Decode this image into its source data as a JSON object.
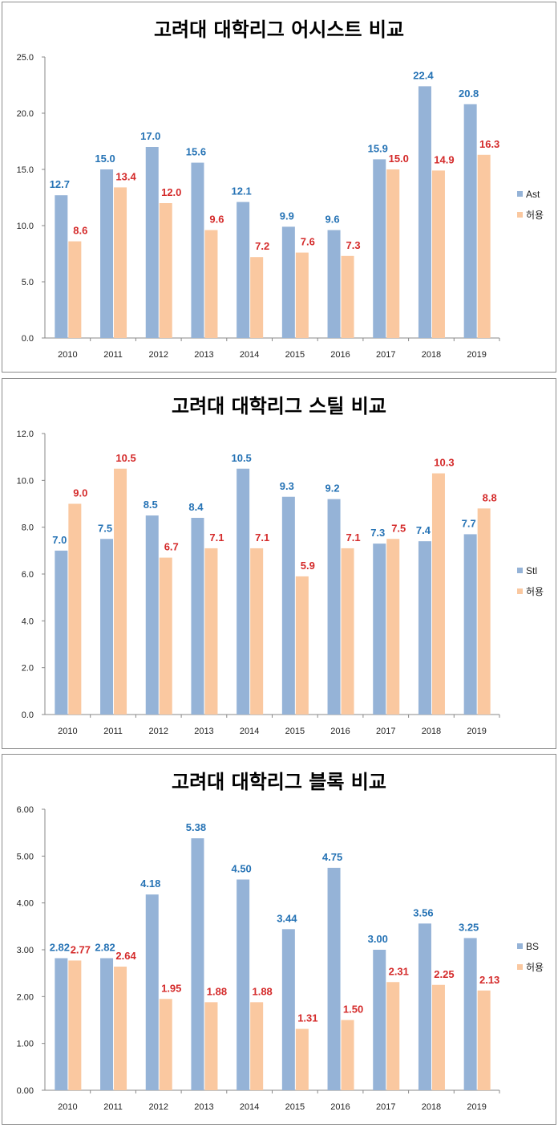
{
  "colors": {
    "primary_bar": "#95B3D7",
    "opponent_bar": "#FAC8A0",
    "primary_label": "#2673B5",
    "opponent_label": "#D42A2A"
  },
  "chart_data": [
    {
      "type": "bar",
      "title": "고려대 대학리그 어시스트 비교",
      "categories": [
        "2010",
        "2011",
        "2012",
        "2013",
        "2014",
        "2015",
        "2016",
        "2017",
        "2018",
        "2019"
      ],
      "ylim": [
        0,
        25
      ],
      "yticks": [
        "0.0",
        "5.0",
        "10.0",
        "15.0",
        "20.0",
        "25.0"
      ],
      "decimals": 1,
      "legend_position": "right",
      "series": [
        {
          "name": "Ast",
          "values": [
            12.7,
            15.0,
            17.0,
            15.6,
            12.1,
            9.9,
            9.6,
            15.9,
            22.4,
            20.8
          ]
        },
        {
          "name": "허용",
          "values": [
            8.6,
            13.4,
            12.0,
            9.6,
            7.2,
            7.6,
            7.3,
            15.0,
            14.9,
            16.3
          ]
        }
      ]
    },
    {
      "type": "bar",
      "title": "고려대 대학리그 스틸 비교",
      "categories": [
        "2010",
        "2011",
        "2012",
        "2013",
        "2014",
        "2015",
        "2016",
        "2017",
        "2018",
        "2019"
      ],
      "ylim": [
        0,
        12
      ],
      "yticks": [
        "0.0",
        "2.0",
        "4.0",
        "6.0",
        "8.0",
        "10.0",
        "12.0"
      ],
      "decimals": 1,
      "legend_position": "right",
      "series": [
        {
          "name": "Stl",
          "values": [
            7.0,
            7.5,
            8.5,
            8.4,
            10.5,
            9.3,
            9.2,
            7.3,
            7.4,
            7.7
          ]
        },
        {
          "name": "허용",
          "values": [
            9.0,
            10.5,
            6.7,
            7.1,
            7.1,
            5.9,
            7.1,
            7.5,
            10.3,
            8.8
          ]
        }
      ]
    },
    {
      "type": "bar",
      "title": "고려대 대학리그 블록 비교",
      "categories": [
        "2010",
        "2011",
        "2012",
        "2013",
        "2014",
        "2015",
        "2016",
        "2017",
        "2018",
        "2019"
      ],
      "ylim": [
        0,
        6
      ],
      "yticks": [
        "0.00",
        "1.00",
        "2.00",
        "3.00",
        "4.00",
        "5.00",
        "6.00"
      ],
      "decimals": 2,
      "legend_position": "right",
      "series": [
        {
          "name": "BS",
          "values": [
            2.82,
            2.82,
            4.18,
            5.38,
            4.5,
            3.44,
            4.75,
            3.0,
            3.56,
            3.25
          ]
        },
        {
          "name": "허용",
          "values": [
            2.77,
            2.64,
            1.95,
            1.88,
            1.88,
            1.31,
            1.5,
            2.31,
            2.25,
            2.13
          ]
        }
      ]
    }
  ]
}
